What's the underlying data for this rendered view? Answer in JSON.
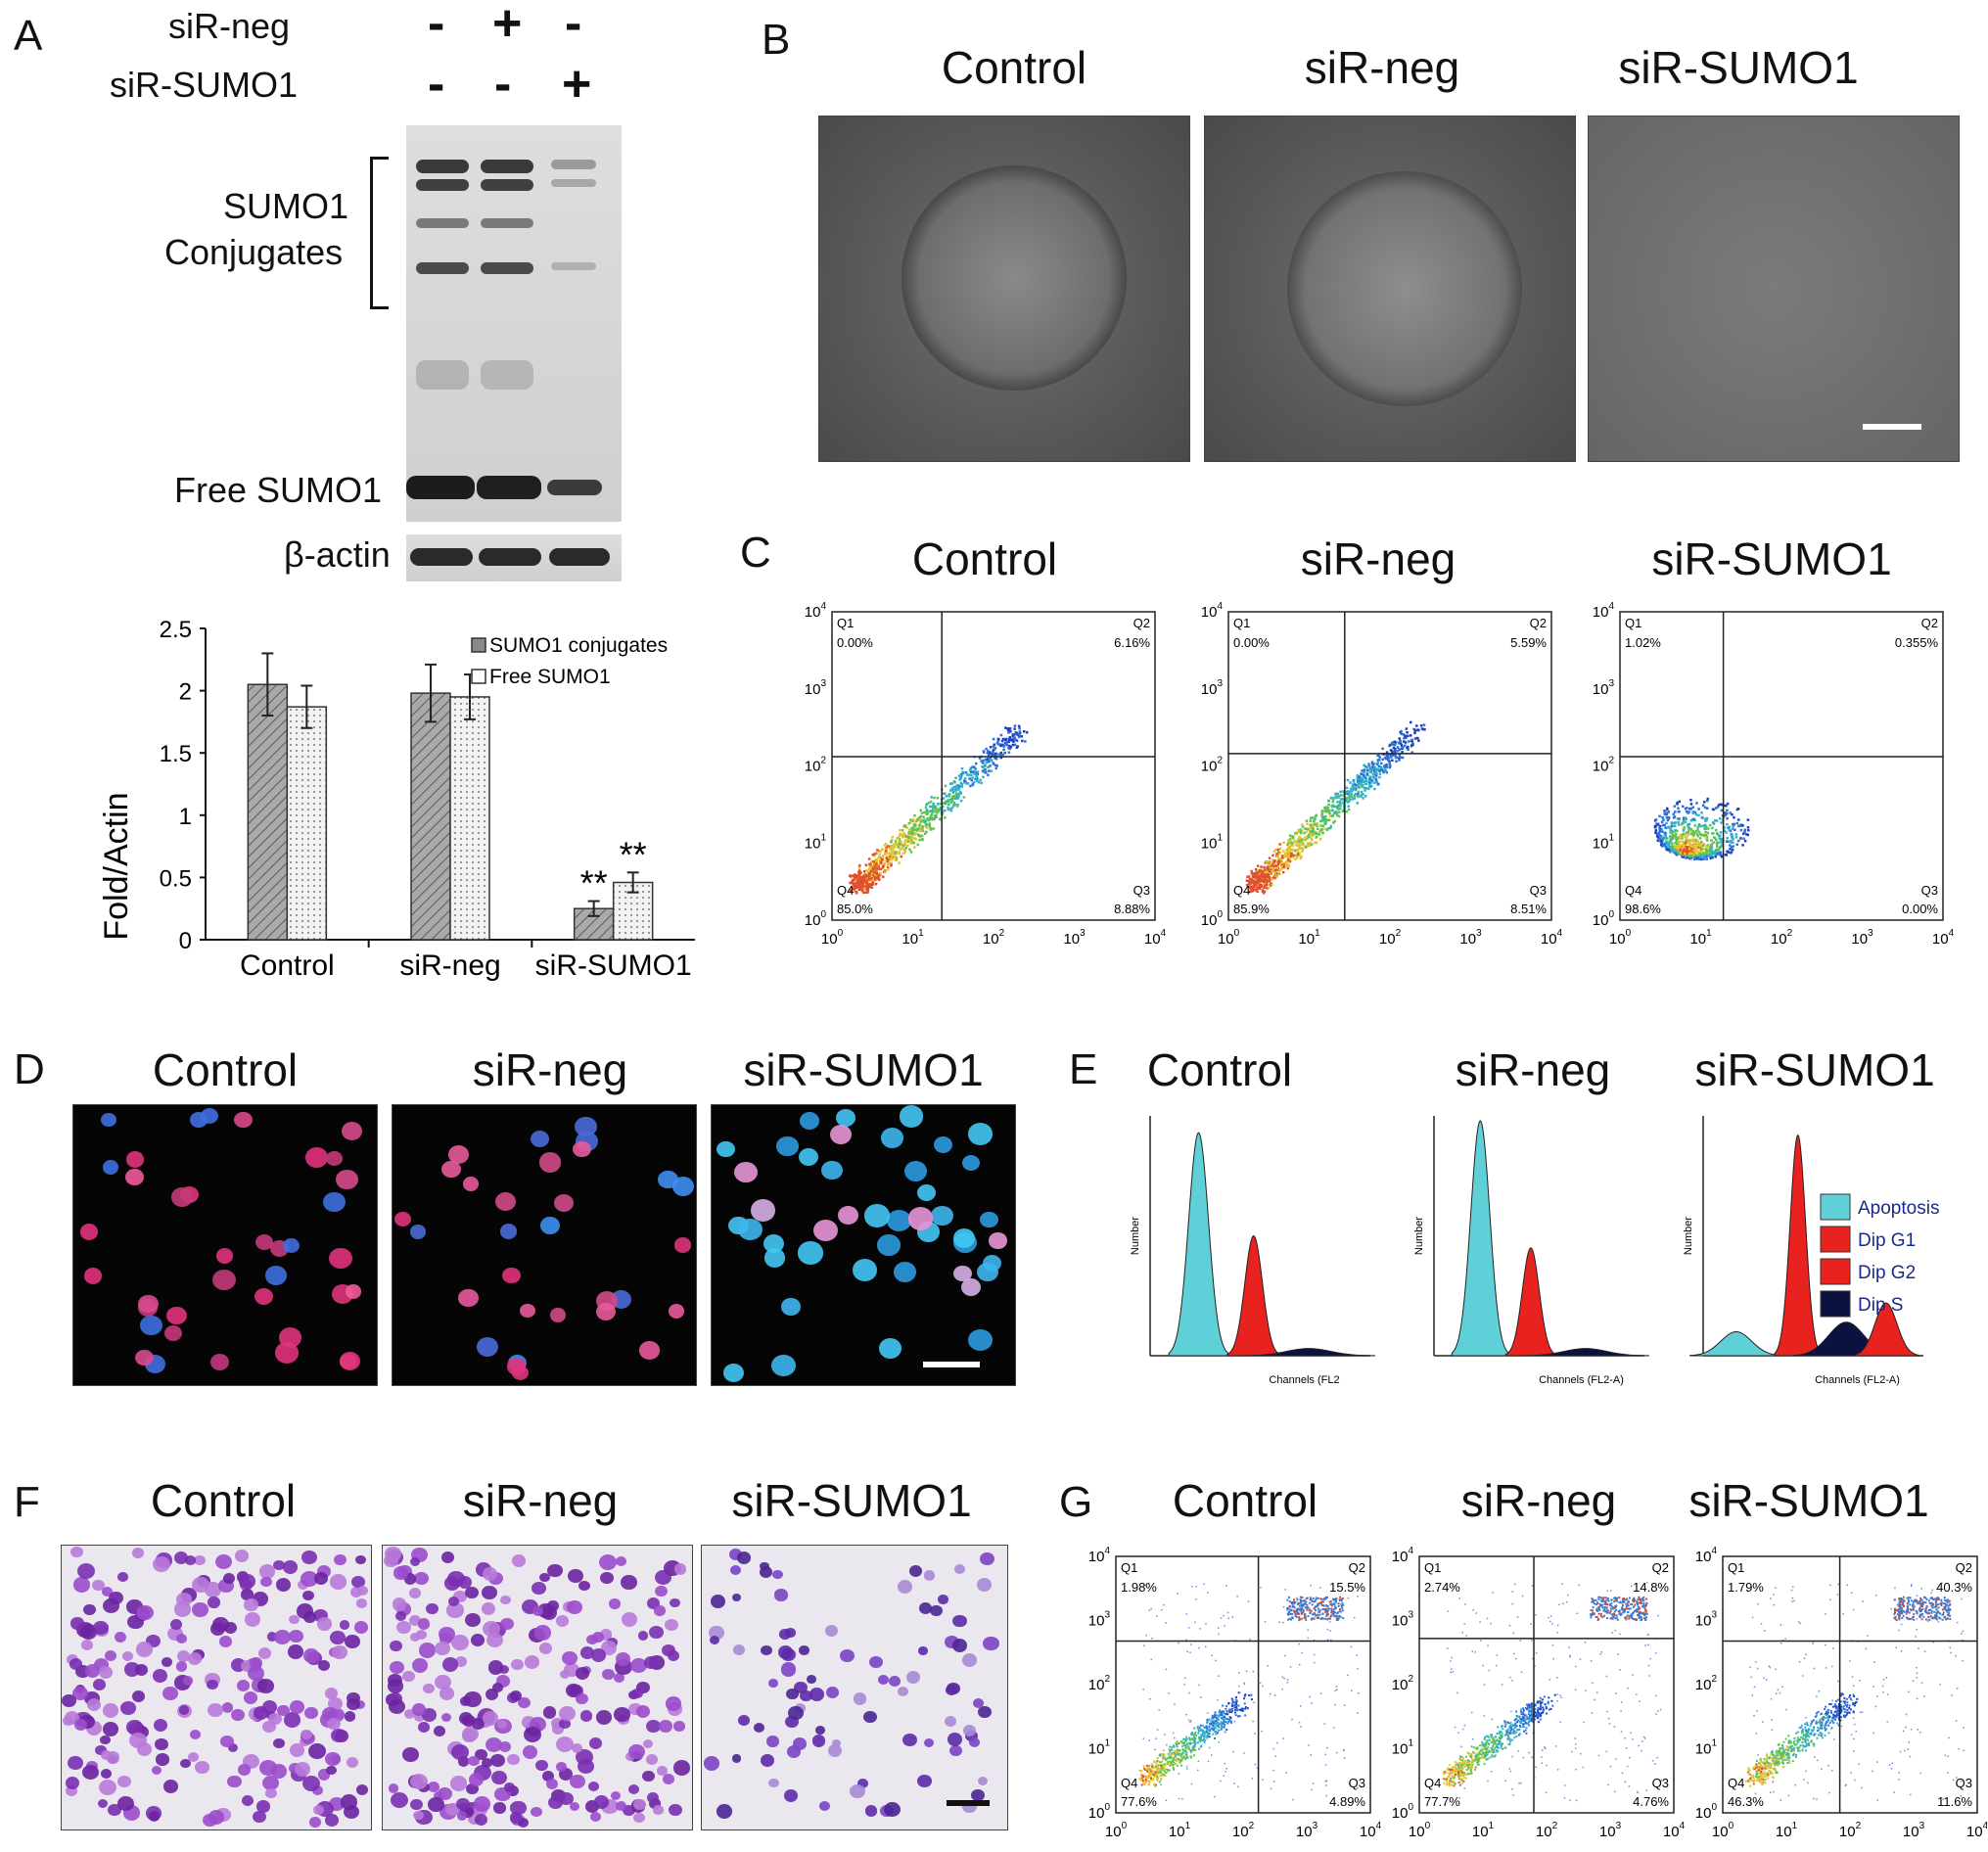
{
  "panels": {
    "A": {
      "letter": "A",
      "row_labels": [
        "siR-neg",
        "siR-SUMO1"
      ],
      "lane_signs": [
        [
          "-",
          "+",
          "-"
        ],
        [
          "-",
          "-",
          "+"
        ]
      ],
      "blot_labels": {
        "conjugates_line1": "SUMO1",
        "conjugates_line2": "Conjugates",
        "free": "Free SUMO1",
        "actin": "β-actin"
      }
    },
    "B": {
      "letter": "B",
      "titles": [
        "Control",
        "siR-neg",
        "siR-SUMO1"
      ]
    },
    "C": {
      "letter": "C",
      "titles": [
        "Control",
        "siR-neg",
        "siR-SUMO1"
      ],
      "plots": [
        {
          "q1": "Q1",
          "q1v": "0.00%",
          "q2": "Q2",
          "q2v": "6.16%",
          "q3": "Q3",
          "q3v": "8.88%",
          "q4": "Q4",
          "q4v": "85.0%"
        },
        {
          "q1": "Q1",
          "q1v": "0.00%",
          "q2": "Q2",
          "q2v": "5.59%",
          "q3": "Q3",
          "q3v": "8.51%",
          "q4": "Q4",
          "q4v": "85.9%"
        },
        {
          "q1": "Q1",
          "q1v": "1.02%",
          "q2": "Q2",
          "q2v": "0.355%",
          "q3": "Q3",
          "q3v": "0.00%",
          "q4": "Q4",
          "q4v": "98.6%"
        }
      ],
      "tick_exponents": [
        "0",
        "1",
        "2",
        "3",
        "4"
      ]
    },
    "D": {
      "letter": "D",
      "titles": [
        "Control",
        "siR-neg",
        "siR-SUMO1"
      ]
    },
    "E": {
      "letter": "E",
      "titles": [
        "Control",
        "siR-neg",
        "siR-SUMO1"
      ],
      "legend": [
        "Apoptosis",
        "Dip G1",
        "Dip G2",
        "Dip S"
      ],
      "legend_colors": [
        "#5fd0d8",
        "#e8231f",
        "#e8231f",
        "#0c1240"
      ],
      "ylabel": "Number",
      "xlabels": [
        "Channels (FL2",
        "Channels (FL2-A)",
        "Channels (FL2-A)"
      ]
    },
    "F": {
      "letter": "F",
      "titles": [
        "Control",
        "siR-neg",
        "siR-SUMO1"
      ]
    },
    "G": {
      "letter": "G",
      "titles": [
        "Control",
        "siR-neg",
        "siR-SUMO1"
      ],
      "plots": [
        {
          "q1": "Q1",
          "q1v": "1.98%",
          "q2": "Q2",
          "q2v": "15.5%",
          "q3": "Q3",
          "q3v": "4.89%",
          "q4": "Q4",
          "q4v": "77.6%"
        },
        {
          "q1": "Q1",
          "q1v": "2.74%",
          "q2": "Q2",
          "q2v": "14.8%",
          "q3": "Q3",
          "q3v": "4.76%",
          "q4": "Q4",
          "q4v": "77.7%"
        },
        {
          "q1": "Q1",
          "q1v": "1.79%",
          "q2": "Q2",
          "q2v": "40.3%",
          "q3": "Q3",
          "q3v": "11.6%",
          "q4": "Q4",
          "q4v": "46.3%"
        }
      ]
    }
  },
  "chart_data": {
    "type": "bar",
    "categories": [
      "Control",
      "siR-neg",
      "siR-SUMO1"
    ],
    "series": [
      {
        "name": "SUMO1 conjugates",
        "values": [
          2.05,
          1.98,
          0.25
        ],
        "errors": [
          0.25,
          0.23,
          0.06
        ]
      },
      {
        "name": "Free SUMO1",
        "values": [
          1.87,
          1.95,
          0.46
        ],
        "errors": [
          0.17,
          0.18,
          0.08
        ]
      }
    ],
    "ylabel": "Fold/Actin",
    "ylim": [
      0,
      2.5
    ],
    "yticks": [
      "0",
      "0.5",
      "1",
      "1.5",
      "2",
      "2.5"
    ],
    "annotations": [
      "**",
      "**"
    ],
    "legend_position": "top-right"
  }
}
